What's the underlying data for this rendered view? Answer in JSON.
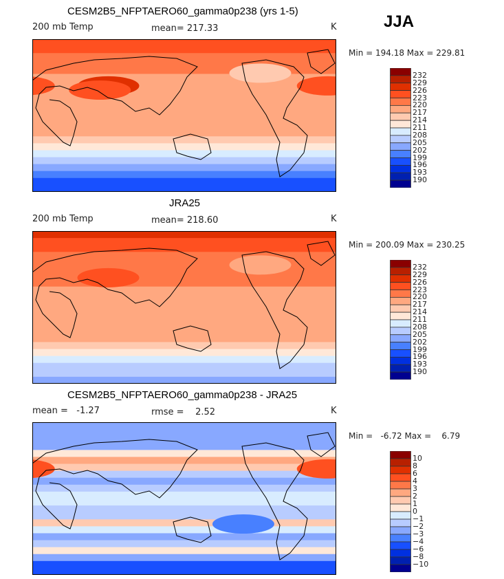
{
  "season": "JJA",
  "units": "K",
  "colors": [
    "#8a0000",
    "#b82000",
    "#e03000",
    "#ff5020",
    "#ff7848",
    "#ffa880",
    "#ffcab0",
    "#ffe8d8",
    "#d8ecff",
    "#b8ccff",
    "#88a8ff",
    "#4880ff",
    "#1850ff",
    "#0030e0",
    "#0020b0",
    "#000090"
  ],
  "chart_data": [
    {
      "type": "heatmap",
      "title": "CESM2B5_NFPTAERO60_gamma0p238 (yrs 1-5)",
      "left_label": "200 mb Temp",
      "mean_label": "mean= 217.33",
      "units": "K",
      "min_max": "Min = 194.18 Max = 229.81",
      "levels": [
        "232",
        "229",
        "226",
        "223",
        "220",
        "217",
        "214",
        "211",
        "208",
        "205",
        "202",
        "199",
        "196",
        "193",
        "190"
      ],
      "zonal_bands_north_to_south": [
        224,
        224,
        222,
        221,
        221,
        219,
        218,
        218,
        219,
        218,
        217,
        218,
        219,
        218,
        216,
        213,
        210,
        207,
        204,
        201,
        198,
        197
      ],
      "features": [
        {
          "lon": 90,
          "lat": 35,
          "value": 228
        },
        {
          "lon": 80,
          "lat": 30,
          "value": 225
        },
        {
          "lon": 350,
          "lat": 35,
          "value": 225
        },
        {
          "lon": 270,
          "lat": 50,
          "value": 216
        }
      ]
    },
    {
      "type": "heatmap",
      "title": "JRA25",
      "left_label": "200 mb Temp",
      "mean_label": "mean= 218.60",
      "units": "K",
      "min_max": "Min = 200.09 Max = 230.25",
      "levels": [
        "232",
        "229",
        "226",
        "223",
        "220",
        "217",
        "214",
        "211",
        "208",
        "205",
        "202",
        "199",
        "196",
        "193",
        "190"
      ],
      "zonal_bands_north_to_south": [
        227,
        225,
        224,
        222,
        221,
        221,
        220,
        220,
        219,
        219,
        219,
        219,
        219,
        219,
        218,
        217,
        216,
        213,
        210,
        207,
        205,
        204
      ],
      "features": [
        {
          "lon": 90,
          "lat": 35,
          "value": 225
        },
        {
          "lon": 270,
          "lat": 50,
          "value": 217
        }
      ]
    },
    {
      "type": "heatmap",
      "title": "CESM2B5_NFPTAERO60_gamma0p238 - JRA25",
      "left_label": "mean =   -1.27",
      "mean_label": "rmse =    2.52",
      "units": "K",
      "min_max": "Min =   -6.72 Max =    6.79",
      "levels": [
        "10",
        "8",
        "6",
        "4",
        "3",
        "2",
        "1",
        "0",
        "−1",
        "−2",
        "−3",
        "−4",
        "−6",
        "−8",
        "−10"
      ],
      "zonal_bands_north_to_south": [
        -3,
        -3,
        -2.5,
        -2.5,
        0.5,
        2.5,
        1.5,
        -1.5,
        -2.5,
        -1.5,
        -0.5,
        -0.5,
        -1.5,
        -1.5,
        1.5,
        -0.5,
        -2.5,
        -1.5,
        0.5,
        -2.5,
        -4.5,
        -5
      ],
      "features": [
        {
          "lon": 350,
          "lat": 35,
          "value": 5
        },
        {
          "lon": 250,
          "lat": -30,
          "value": -3.5
        }
      ]
    }
  ]
}
